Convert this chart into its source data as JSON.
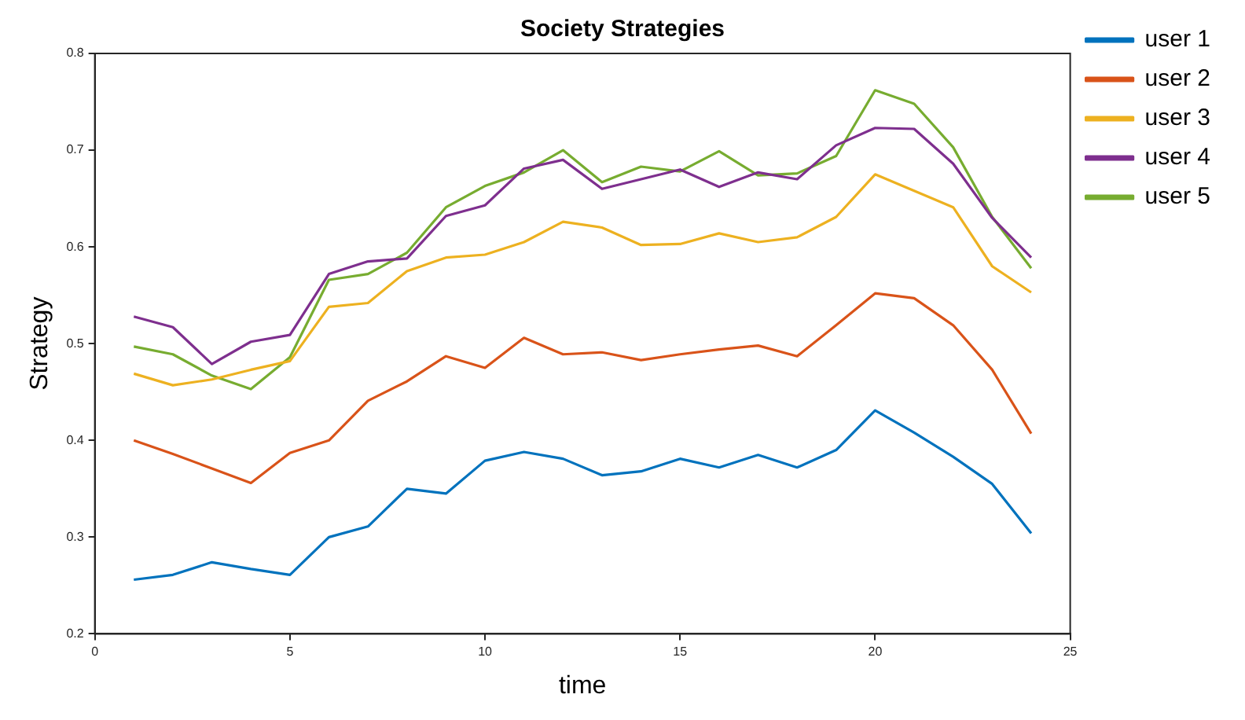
{
  "chart_data": {
    "type": "line",
    "title": "Society Strategies",
    "xlabel": "time",
    "ylabel": "Strategy",
    "x": [
      1,
      2,
      3,
      4,
      5,
      6,
      7,
      8,
      9,
      10,
      11,
      12,
      13,
      14,
      15,
      16,
      17,
      18,
      19,
      20,
      21,
      22,
      23,
      24
    ],
    "series": [
      {
        "name": "user 1",
        "color": "#0072bd",
        "values": [
          0.256,
          0.261,
          0.274,
          0.267,
          0.261,
          0.3,
          0.311,
          0.35,
          0.345,
          0.379,
          0.388,
          0.381,
          0.364,
          0.368,
          0.381,
          0.372,
          0.385,
          0.372,
          0.39,
          0.431,
          0.408,
          0.383,
          0.355,
          0.304
        ]
      },
      {
        "name": "user 2",
        "color": "#d95319",
        "values": [
          0.4,
          0.386,
          0.371,
          0.356,
          0.387,
          0.4,
          0.441,
          0.461,
          0.487,
          0.475,
          0.506,
          0.489,
          0.491,
          0.483,
          0.489,
          0.494,
          0.498,
          0.487,
          0.519,
          0.552,
          0.547,
          0.519,
          0.473,
          0.407
        ]
      },
      {
        "name": "user 3",
        "color": "#edb120",
        "values": [
          0.469,
          0.457,
          0.463,
          0.473,
          0.482,
          0.538,
          0.542,
          0.575,
          0.589,
          0.592,
          0.605,
          0.626,
          0.62,
          0.602,
          0.603,
          0.614,
          0.605,
          0.61,
          0.631,
          0.675,
          0.658,
          0.641,
          0.58,
          0.553
        ]
      },
      {
        "name": "user 4",
        "color": "#7e2f8e",
        "values": [
          0.528,
          0.517,
          0.479,
          0.502,
          0.509,
          0.572,
          0.585,
          0.588,
          0.632,
          0.643,
          0.681,
          0.69,
          0.66,
          0.67,
          0.68,
          0.662,
          0.677,
          0.67,
          0.705,
          0.723,
          0.722,
          0.686,
          0.63,
          0.589
        ]
      },
      {
        "name": "user 5",
        "color": "#77ac30",
        "values": [
          0.497,
          0.489,
          0.467,
          0.453,
          0.486,
          0.566,
          0.572,
          0.594,
          0.641,
          0.663,
          0.677,
          0.7,
          0.667,
          0.683,
          0.678,
          0.699,
          0.674,
          0.676,
          0.694,
          0.762,
          0.748,
          0.703,
          0.631,
          0.578
        ]
      }
    ],
    "xlim": [
      0,
      25
    ],
    "xticks": [
      0,
      5,
      10,
      15,
      20,
      25
    ],
    "ylim": [
      0.2,
      0.8
    ],
    "yticks": [
      0.2,
      0.3,
      0.4,
      0.5,
      0.6,
      0.7,
      0.8
    ],
    "legend": "top right",
    "grid": false,
    "marker": "none",
    "line_style": "solid"
  }
}
